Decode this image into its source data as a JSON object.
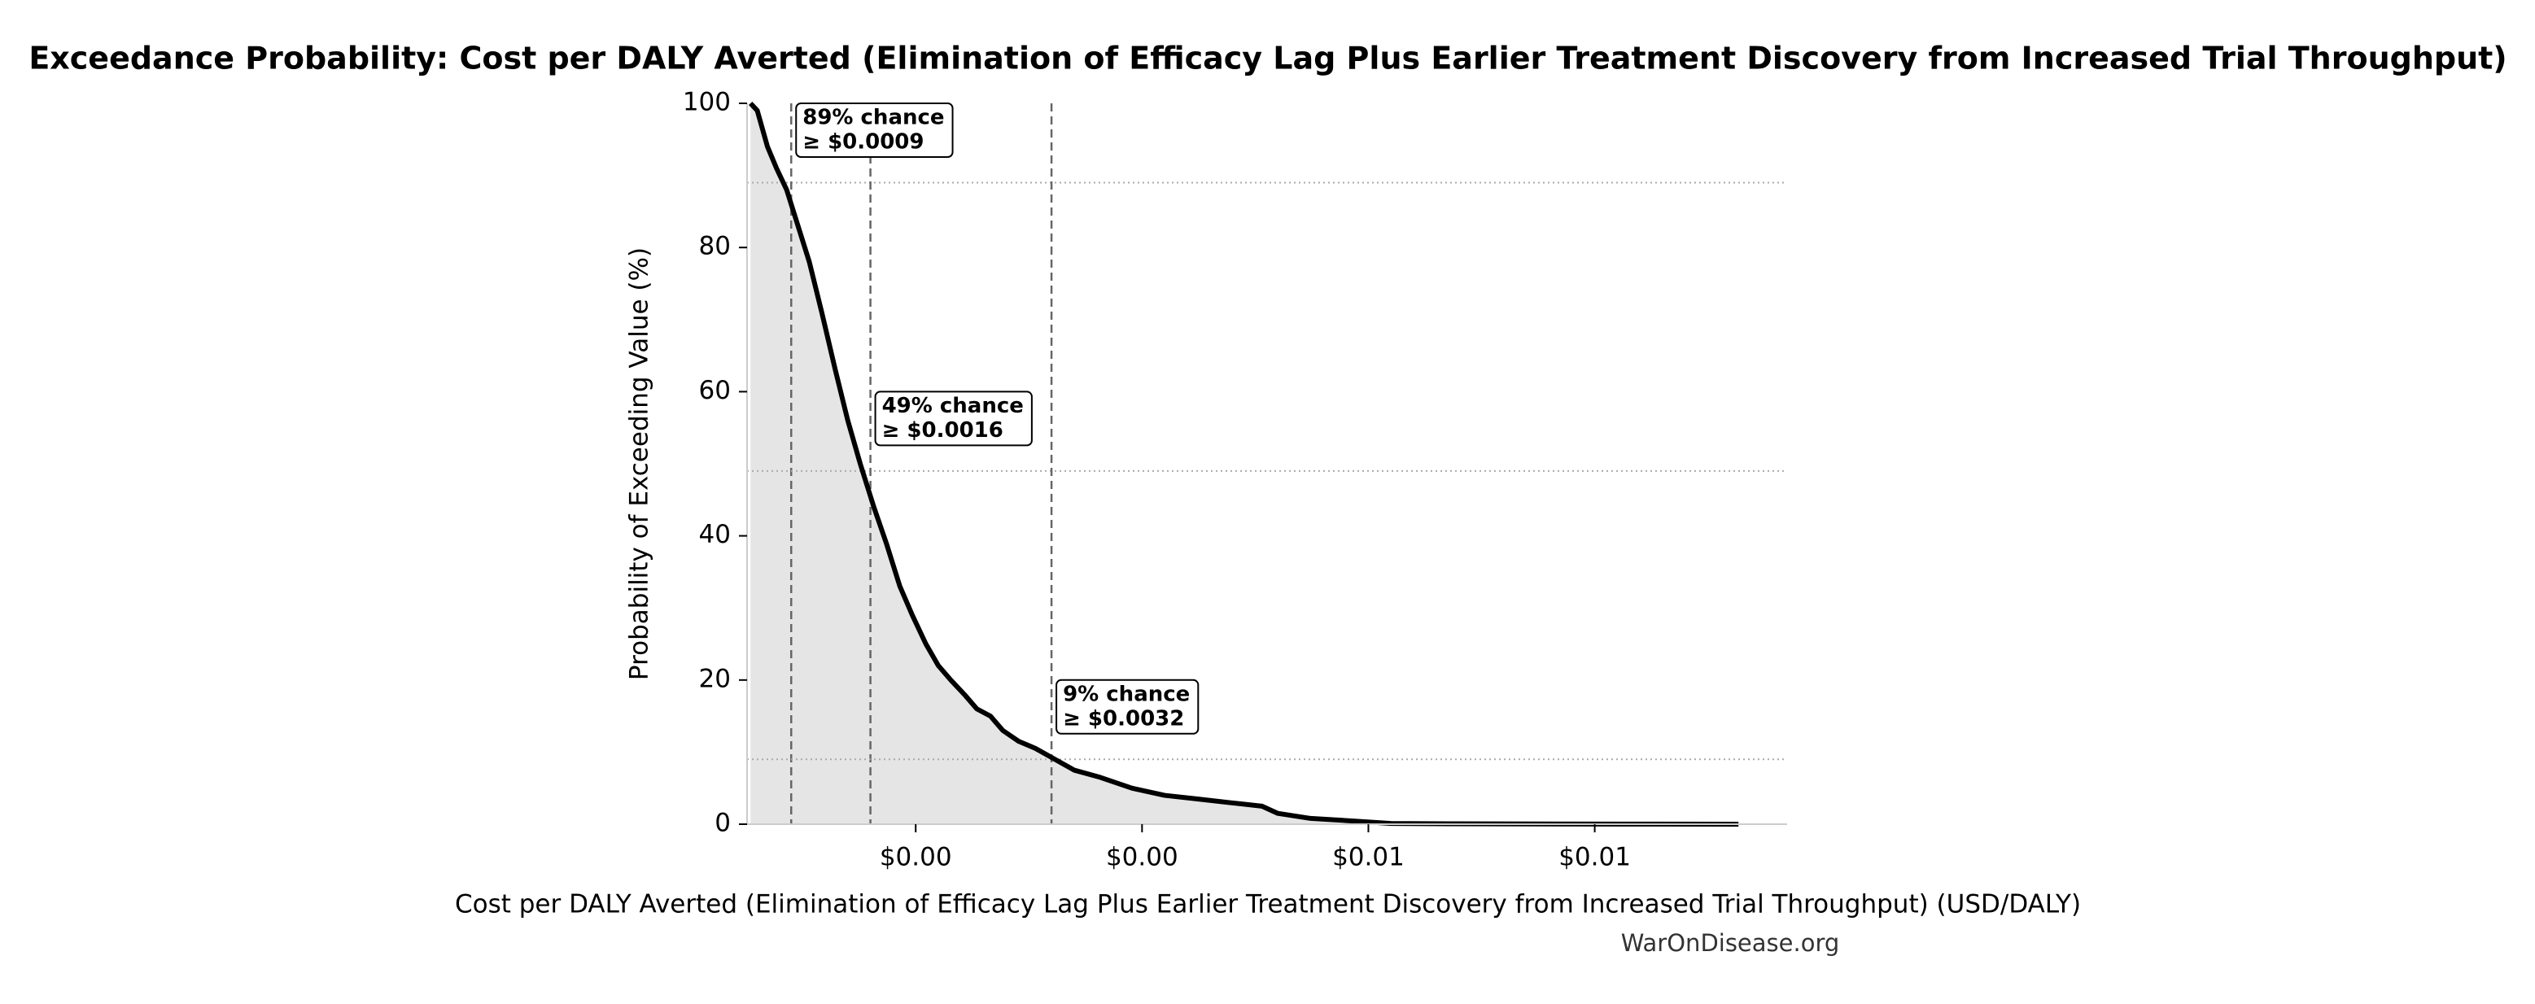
{
  "chart_data": {
    "type": "line",
    "title": "Exceedance Probability: Cost per DALY Averted (Elimination of Efficacy Lag Plus Earlier Treatment Discovery from Increased Trial Throughput)",
    "x_label": "Cost per DALY Averted (Elimination of Efficacy Lag Plus Earlier Treatment Discovery from Increased Trial Throughput) (USD/DALY)",
    "y_label": "Probability of Exceeding Value (%)",
    "source": "WarOnDisease.org",
    "x": [
      0.00054,
      0.0006,
      0.00069,
      0.00077,
      0.00086,
      0.00094,
      0.00106,
      0.00117,
      0.00129,
      0.0014,
      0.00151,
      0.00163,
      0.00174,
      0.00186,
      0.00197,
      0.00209,
      0.0022,
      0.00231,
      0.00243,
      0.00254,
      0.00266,
      0.00277,
      0.00291,
      0.00306,
      0.00323,
      0.0034,
      0.00363,
      0.00391,
      0.0042,
      0.00449,
      0.00477,
      0.00506,
      0.0052,
      0.00549,
      0.00591,
      0.0062,
      0.00677,
      0.0082,
      0.00927
    ],
    "values": [
      100,
      99,
      94,
      91,
      88,
      84,
      78,
      71,
      63,
      56,
      50,
      44,
      39,
      33,
      29,
      25,
      22,
      20,
      18,
      16,
      15,
      13,
      11.5,
      10.5,
      9,
      7.5,
      6.5,
      5,
      4,
      3.5,
      3,
      2.5,
      1.5,
      0.8,
      0.4,
      0.1,
      0.05,
      0.02,
      0
    ],
    "color": "#000000",
    "fill_color": "#e5e5e5",
    "xlim": [
      0.00051,
      0.0097
    ],
    "xticks": [
      {
        "value": 0.002,
        "label": "$0.00"
      },
      {
        "value": 0.004,
        "label": "$0.00"
      },
      {
        "value": 0.006,
        "label": "$0.01"
      },
      {
        "value": 0.008,
        "label": "$0.01"
      }
    ],
    "ylim": [
      0,
      100
    ],
    "yticks": [
      0,
      20,
      40,
      60,
      80,
      100
    ],
    "annotations": [
      {
        "label": "89% chance",
        "value_label": "≥ $0.0009",
        "x": 0.0009,
        "y": 89
      },
      {
        "label": "49% chance",
        "value_label": "≥ $0.0016",
        "x": 0.0016,
        "y": 49
      },
      {
        "label": "9% chance",
        "value_label": "≥ $0.0032",
        "x": 0.0032,
        "y": 9
      }
    ]
  }
}
